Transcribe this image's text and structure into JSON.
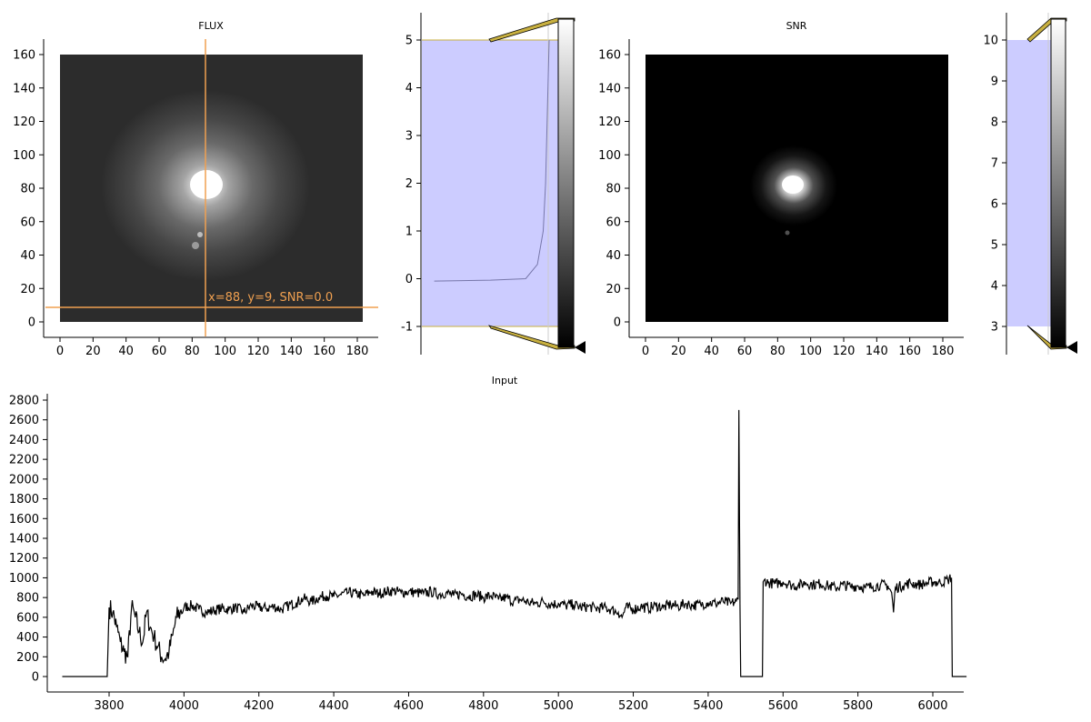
{
  "panels": {
    "flux": {
      "title": "FLUX",
      "x_ticks": [
        "0",
        "20",
        "40",
        "60",
        "80",
        "100",
        "120",
        "140",
        "160",
        "180"
      ],
      "y_ticks": [
        "0",
        "20",
        "40",
        "60",
        "80",
        "100",
        "120",
        "140",
        "160"
      ],
      "cursor_label": "x=88, y=9, SNR=0.0",
      "cursor_color": "#f0a050"
    },
    "flux_colorbar": {
      "y_ticks": [
        "-1",
        "0",
        "1",
        "2",
        "3",
        "4",
        "5"
      ],
      "fill_color": "#ccccff",
      "limit_line_color": "#c8b040"
    },
    "snr": {
      "title": "SNR",
      "x_ticks": [
        "0",
        "20",
        "40",
        "60",
        "80",
        "100",
        "120",
        "140",
        "160",
        "180"
      ],
      "y_ticks": [
        "0",
        "20",
        "40",
        "60",
        "80",
        "100",
        "120",
        "140",
        "160"
      ]
    },
    "snr_colorbar": {
      "y_ticks": [
        "3",
        "4",
        "5",
        "6",
        "7",
        "8",
        "9",
        "10"
      ],
      "fill_color": "#ccccff"
    },
    "spectrum": {
      "title": "Input",
      "x_ticks": [
        "3800",
        "4000",
        "4200",
        "4400",
        "4600",
        "4800",
        "5000",
        "5200",
        "5400",
        "5600",
        "5800",
        "6000"
      ],
      "y_ticks": [
        "0",
        "200",
        "400",
        "600",
        "800",
        "1000",
        "1200",
        "1400",
        "1600",
        "1800",
        "2000",
        "2200",
        "2400",
        "2600",
        "2800"
      ]
    }
  },
  "chart_data": [
    {
      "type": "heatmap",
      "title": "FLUX",
      "xlim": [
        0,
        183
      ],
      "ylim": [
        0,
        160
      ],
      "bright_source_center": [
        88,
        80
      ],
      "cursor": {
        "x": 88,
        "y": 9,
        "SNR": 0.0
      }
    },
    {
      "type": "line",
      "ylim": [
        -1,
        5
      ],
      "note_points": [
        [
          0.02,
          -0.05
        ],
        [
          0.5,
          -0.03
        ],
        [
          0.8,
          0.0
        ],
        [
          0.9,
          0.3
        ],
        [
          0.95,
          1.0
        ],
        [
          0.97,
          2.0
        ],
        [
          0.98,
          3.0
        ],
        [
          0.99,
          4.0
        ],
        [
          1.0,
          5.0
        ]
      ]
    },
    {
      "type": "heatmap",
      "title": "SNR",
      "xlim": [
        0,
        183
      ],
      "ylim": [
        0,
        160
      ],
      "bright_source_center": [
        89,
        82
      ]
    },
    {
      "type": "line",
      "ylim": [
        3,
        10
      ]
    },
    {
      "type": "line",
      "title": "Input",
      "xlim": [
        3650,
        6090
      ],
      "ylim": [
        0,
        2800
      ],
      "series": [
        {
          "x": [
            3675,
            3795,
            3800,
            3810,
            3820,
            3830,
            3840,
            3850,
            3860,
            3870,
            3880,
            3890,
            3900,
            3910,
            3920,
            3930,
            3940,
            3950,
            3960,
            3970,
            3980,
            3990,
            4000,
            4020,
            4040,
            4060,
            4080,
            4100,
            4120,
            4140,
            4160,
            4180,
            4200,
            4220,
            4240,
            4260,
            4280,
            4300,
            4320,
            4340,
            4360,
            4380,
            4400,
            4420,
            4440,
            4460,
            4480,
            4500,
            4520,
            4540,
            4560,
            4580,
            4600,
            4620,
            4640,
            4660,
            4680,
            4700,
            4720,
            4740,
            4760,
            4780,
            4800,
            4820,
            4840,
            4860,
            4880,
            4900,
            4920,
            4940,
            4960,
            4980,
            5000,
            5020,
            5040,
            5060,
            5080,
            5100,
            5120,
            5140,
            5160,
            5170,
            5180,
            5200,
            5220,
            5240,
            5260,
            5280,
            5300,
            5320,
            5340,
            5360,
            5380,
            5400,
            5420,
            5440,
            5460,
            5475,
            5480,
            5482,
            5485,
            5487,
            5545,
            5547,
            5550,
            5560,
            5580,
            5600,
            5620,
            5640,
            5660,
            5680,
            5700,
            5720,
            5740,
            5760,
            5780,
            5800,
            5820,
            5840,
            5860,
            5880,
            5890,
            5895,
            5900,
            5920,
            5940,
            5960,
            5980,
            6000,
            6020,
            6040,
            6050,
            6052,
            6090
          ],
          "y": [
            0,
            0,
            700,
            650,
            500,
            350,
            250,
            200,
            700,
            600,
            450,
            350,
            650,
            500,
            400,
            300,
            200,
            180,
            250,
            420,
            600,
            650,
            700,
            720,
            680,
            650,
            670,
            690,
            680,
            700,
            650,
            720,
            700,
            690,
            710,
            680,
            720,
            750,
            790,
            760,
            800,
            820,
            810,
            830,
            850,
            840,
            820,
            860,
            840,
            860,
            870,
            850,
            860,
            850,
            840,
            860,
            830,
            850,
            820,
            840,
            810,
            830,
            800,
            820,
            780,
            800,
            760,
            780,
            750,
            740,
            760,
            730,
            740,
            720,
            730,
            700,
            710,
            690,
            700,
            680,
            650,
            600,
            700,
            680,
            710,
            690,
            720,
            700,
            730,
            710,
            740,
            720,
            730,
            750,
            740,
            760,
            740,
            760,
            780,
            2700,
            750,
            0,
            0,
            960,
            980,
            950,
            940,
            960,
            930,
            920,
            950,
            930,
            940,
            920,
            900,
            930,
            910,
            920,
            900,
            910,
            930,
            920,
            850,
            650,
            900,
            920,
            950,
            930,
            940,
            960,
            950,
            980,
            1000,
            0,
            0
          ]
        }
      ]
    }
  ]
}
